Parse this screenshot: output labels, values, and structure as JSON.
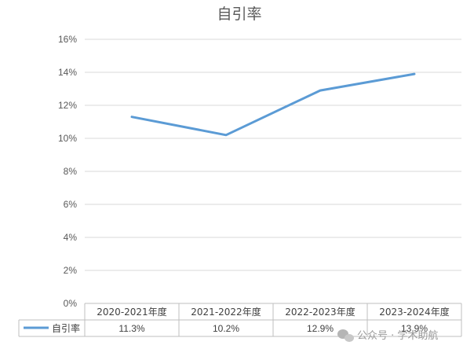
{
  "chart_data": {
    "type": "line",
    "title": "自引率",
    "categories": [
      "2020-2021年度",
      "2021-2022年度",
      "2022-2023年度",
      "2023-2024年度"
    ],
    "series": [
      {
        "name": "自引率",
        "values": [
          11.3,
          10.2,
          12.9,
          13.9
        ],
        "labels": [
          "11.3%",
          "10.2%",
          "12.9%",
          "13.9%"
        ],
        "color": "#5B9BD5"
      }
    ],
    "yticks": [
      "0%",
      "2%",
      "4%",
      "6%",
      "8%",
      "10%",
      "12%",
      "14%",
      "16%"
    ],
    "ylim": [
      0,
      16
    ],
    "grid": true,
    "legend": "data-table-left"
  },
  "watermark": {
    "text": "公众号 · 学术助航"
  }
}
